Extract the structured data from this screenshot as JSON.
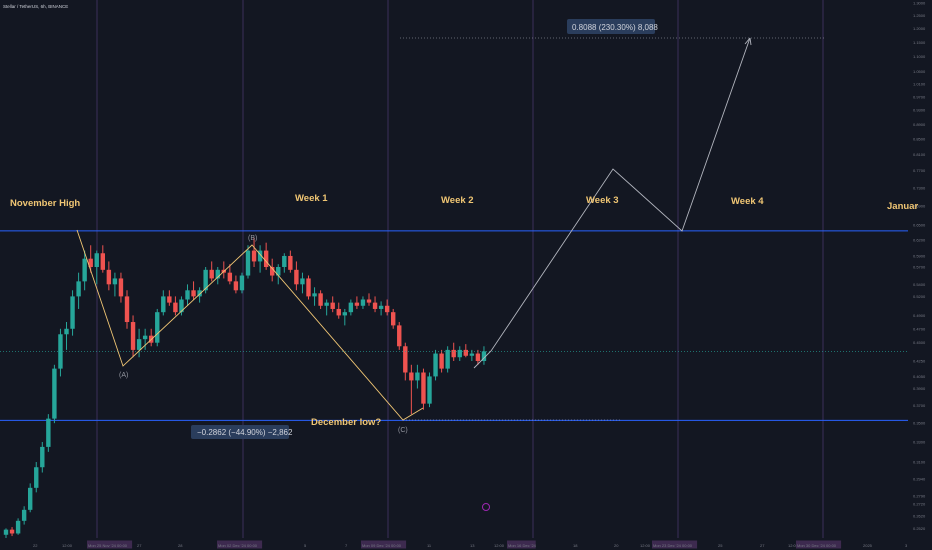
{
  "header": {
    "symbol_text": "Stellar / TetherUS, 6h, BINANCE"
  },
  "colors": {
    "background": "#131722",
    "bull": "#26a69a",
    "bear": "#ef5350",
    "gold": "#f0c674",
    "blue": "#2962ff",
    "projection": "#b2b5be",
    "week_line": "#3b2f5a",
    "axis_text": "#787b86"
  },
  "annotations": {
    "november_high": "November High",
    "week1": "Week 1",
    "week2": "Week 2",
    "week3": "Week 3",
    "week4": "Week 4",
    "january": "Januar",
    "december_low": "December low?",
    "wave_a": "(A)",
    "wave_b": "(B)",
    "wave_c": "(C)",
    "measure_down": "−0.2862 (−44.90%) −2,862",
    "measure_up": "0.8088 (230.30%) 8,088"
  },
  "price_axis": {
    "ticks": [
      "1.3000",
      "1.2500",
      "1.2000",
      "1.1500",
      "1.1000",
      "1.0500",
      "1.0100",
      "0.9700",
      "0.9300",
      "0.8900",
      "0.8500",
      "0.8100",
      "0.7700",
      "0.7300",
      "0.6900",
      "0.6500",
      "0.6200",
      "0.5900",
      "0.5700",
      "0.5400",
      "0.5200",
      "0.4900",
      "0.4700",
      "0.4500",
      "0.4250",
      "0.4050",
      "0.3900",
      "0.3700",
      "0.3500",
      "0.3300",
      "0.3100",
      "0.2940",
      "0.2790",
      "0.2720",
      "0.2620",
      "0.2520",
      "0.2430"
    ],
    "current_price_label": "0.4133",
    "high_line_label": "0.6378",
    "low_line_label": "0.3532"
  },
  "time_axis": {
    "labels": [
      "22",
      "12:00",
      "Mon 25 Nov '24   00:00",
      "27",
      "28",
      "Mon 02 Dec '24   00:00",
      "5",
      "7",
      "Mon 09 Dec '24   00:00",
      "11",
      "13",
      "12:00",
      "Mon 16 Dec '24",
      "18",
      "20",
      "12:00",
      "Mon 23 Dec '24   00:00",
      "25",
      "27",
      "12:00",
      "Mon 30 Dec '24   00:00",
      "2025",
      "3"
    ]
  },
  "chart_data": {
    "type": "candlestick",
    "title": "Stellar / TetherUS, 6h, BINANCE",
    "price_range": [
      0.243,
      1.3
    ],
    "scale": "log",
    "horizontal_levels": {
      "november_high": 0.638,
      "december_low": 0.353
    },
    "ohlc": [
      [
        0.247,
        0.252,
        0.244,
        0.251
      ],
      [
        0.251,
        0.253,
        0.246,
        0.248
      ],
      [
        0.248,
        0.26,
        0.247,
        0.258
      ],
      [
        0.258,
        0.27,
        0.255,
        0.267
      ],
      [
        0.267,
        0.29,
        0.265,
        0.286
      ],
      [
        0.286,
        0.31,
        0.282,
        0.305
      ],
      [
        0.305,
        0.33,
        0.3,
        0.325
      ],
      [
        0.325,
        0.36,
        0.32,
        0.355
      ],
      [
        0.355,
        0.42,
        0.35,
        0.415
      ],
      [
        0.415,
        0.47,
        0.405,
        0.462
      ],
      [
        0.462,
        0.48,
        0.44,
        0.47
      ],
      [
        0.47,
        0.53,
        0.46,
        0.52
      ],
      [
        0.52,
        0.56,
        0.5,
        0.545
      ],
      [
        0.545,
        0.6,
        0.53,
        0.585
      ],
      [
        0.585,
        0.61,
        0.56,
        0.57
      ],
      [
        0.57,
        0.6,
        0.54,
        0.595
      ],
      [
        0.595,
        0.61,
        0.56,
        0.565
      ],
      [
        0.565,
        0.58,
        0.53,
        0.54
      ],
      [
        0.54,
        0.56,
        0.52,
        0.55
      ],
      [
        0.55,
        0.56,
        0.51,
        0.52
      ],
      [
        0.52,
        0.53,
        0.47,
        0.48
      ],
      [
        0.48,
        0.49,
        0.43,
        0.44
      ],
      [
        0.44,
        0.47,
        0.43,
        0.455
      ],
      [
        0.455,
        0.47,
        0.44,
        0.46
      ],
      [
        0.46,
        0.47,
        0.445,
        0.45
      ],
      [
        0.45,
        0.5,
        0.445,
        0.495
      ],
      [
        0.495,
        0.53,
        0.49,
        0.52
      ],
      [
        0.52,
        0.53,
        0.505,
        0.51
      ],
      [
        0.51,
        0.52,
        0.49,
        0.495
      ],
      [
        0.495,
        0.52,
        0.49,
        0.515
      ],
      [
        0.515,
        0.54,
        0.505,
        0.53
      ],
      [
        0.53,
        0.545,
        0.515,
        0.52
      ],
      [
        0.52,
        0.535,
        0.51,
        0.53
      ],
      [
        0.53,
        0.57,
        0.525,
        0.565
      ],
      [
        0.565,
        0.58,
        0.545,
        0.55
      ],
      [
        0.55,
        0.57,
        0.54,
        0.565
      ],
      [
        0.565,
        0.58,
        0.55,
        0.56
      ],
      [
        0.56,
        0.575,
        0.54,
        0.545
      ],
      [
        0.545,
        0.555,
        0.525,
        0.53
      ],
      [
        0.53,
        0.56,
        0.525,
        0.555
      ],
      [
        0.555,
        0.61,
        0.55,
        0.6
      ],
      [
        0.6,
        0.625,
        0.57,
        0.58
      ],
      [
        0.58,
        0.61,
        0.56,
        0.6
      ],
      [
        0.6,
        0.615,
        0.565,
        0.57
      ],
      [
        0.57,
        0.585,
        0.545,
        0.555
      ],
      [
        0.555,
        0.575,
        0.54,
        0.57
      ],
      [
        0.57,
        0.595,
        0.56,
        0.59
      ],
      [
        0.59,
        0.6,
        0.56,
        0.565
      ],
      [
        0.565,
        0.58,
        0.53,
        0.54
      ],
      [
        0.54,
        0.56,
        0.525,
        0.55
      ],
      [
        0.55,
        0.555,
        0.515,
        0.52
      ],
      [
        0.52,
        0.535,
        0.505,
        0.525
      ],
      [
        0.525,
        0.53,
        0.5,
        0.505
      ],
      [
        0.505,
        0.515,
        0.49,
        0.51
      ],
      [
        0.51,
        0.52,
        0.495,
        0.5
      ],
      [
        0.5,
        0.51,
        0.485,
        0.49
      ],
      [
        0.49,
        0.5,
        0.475,
        0.495
      ],
      [
        0.495,
        0.515,
        0.49,
        0.51
      ],
      [
        0.51,
        0.52,
        0.5,
        0.505
      ],
      [
        0.505,
        0.52,
        0.5,
        0.515
      ],
      [
        0.515,
        0.525,
        0.505,
        0.51
      ],
      [
        0.51,
        0.52,
        0.495,
        0.5
      ],
      [
        0.5,
        0.512,
        0.49,
        0.505
      ],
      [
        0.505,
        0.515,
        0.49,
        0.495
      ],
      [
        0.495,
        0.5,
        0.47,
        0.475
      ],
      [
        0.475,
        0.48,
        0.44,
        0.445
      ],
      [
        0.445,
        0.45,
        0.4,
        0.41
      ],
      [
        0.41,
        0.42,
        0.36,
        0.4
      ],
      [
        0.4,
        0.42,
        0.39,
        0.41
      ],
      [
        0.41,
        0.415,
        0.365,
        0.372
      ],
      [
        0.372,
        0.41,
        0.368,
        0.405
      ],
      [
        0.405,
        0.44,
        0.4,
        0.435
      ],
      [
        0.435,
        0.44,
        0.41,
        0.415
      ],
      [
        0.415,
        0.445,
        0.41,
        0.44
      ],
      [
        0.44,
        0.45,
        0.425,
        0.43
      ],
      [
        0.43,
        0.445,
        0.425,
        0.44
      ],
      [
        0.44,
        0.448,
        0.43,
        0.432
      ],
      [
        0.432,
        0.44,
        0.425,
        0.435
      ],
      [
        0.435,
        0.44,
        0.42,
        0.425
      ],
      [
        0.425,
        0.445,
        0.42,
        0.438
      ]
    ]
  }
}
